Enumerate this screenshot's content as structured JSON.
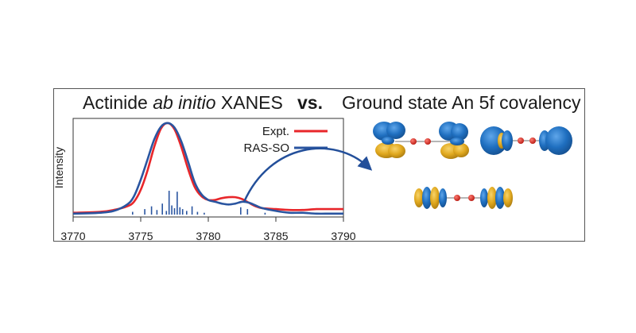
{
  "header": {
    "title_prefix": "Actinide ",
    "title_italic": "ab initio",
    "title_suffix": " XANES",
    "vs": "vs.",
    "title_right": "Ground state An 5f covalency"
  },
  "colors": {
    "expt": "#e8262a",
    "ras_so": "#2a55a0",
    "lobe_blue": "#1f6fc0",
    "lobe_gold": "#e0a81e",
    "atom_red": "#d9261c",
    "arrow": "#234f9a",
    "frame": "#555555"
  },
  "chart_data": {
    "type": "line",
    "xlabel": "",
    "ylabel": "Intensity",
    "xlim": [
      3770,
      3790
    ],
    "ylim": [
      0,
      1.05
    ],
    "x_ticks": [
      "3770",
      "3775",
      "3780",
      "3785",
      "3790"
    ],
    "grid": false,
    "legend_position": "top-right",
    "series": [
      {
        "name": "Expt.",
        "color": "#e8262a",
        "x": [
          3770,
          3772,
          3773,
          3774,
          3774.5,
          3775,
          3775.5,
          3776,
          3776.5,
          3777,
          3777.5,
          3778,
          3778.5,
          3779,
          3779.5,
          3780,
          3780.5,
          3781,
          3781.5,
          3782,
          3782.5,
          3783,
          3783.5,
          3784,
          3785,
          3786,
          3787,
          3788,
          3789,
          3790
        ],
        "y": [
          0.02,
          0.03,
          0.05,
          0.09,
          0.14,
          0.27,
          0.48,
          0.74,
          0.94,
          1.0,
          0.93,
          0.74,
          0.5,
          0.3,
          0.2,
          0.16,
          0.16,
          0.18,
          0.19,
          0.19,
          0.17,
          0.13,
          0.09,
          0.07,
          0.06,
          0.05,
          0.05,
          0.06,
          0.06,
          0.06
        ]
      },
      {
        "name": "RAS-SO",
        "color": "#2a55a0",
        "x": [
          3770,
          3772,
          3773,
          3774,
          3774.5,
          3775,
          3775.5,
          3776,
          3776.5,
          3777,
          3777.5,
          3778,
          3778.5,
          3779,
          3779.5,
          3780,
          3780.5,
          3781,
          3781.5,
          3782,
          3782.5,
          3783,
          3783.5,
          3784,
          3785,
          3786,
          3787,
          3788,
          3789,
          3790
        ],
        "y": [
          0.01,
          0.02,
          0.04,
          0.11,
          0.2,
          0.38,
          0.6,
          0.82,
          0.96,
          1.0,
          0.95,
          0.8,
          0.58,
          0.35,
          0.22,
          0.16,
          0.14,
          0.12,
          0.11,
          0.12,
          0.14,
          0.13,
          0.1,
          0.07,
          0.04,
          0.02,
          0.02,
          0.01,
          0.01,
          0.01
        ]
      }
    ],
    "stick_color": "#2a55a0",
    "sticks": [
      {
        "x": 3774.4,
        "h": 0.03
      },
      {
        "x": 3775.3,
        "h": 0.06
      },
      {
        "x": 3775.8,
        "h": 0.09
      },
      {
        "x": 3776.2,
        "h": 0.05
      },
      {
        "x": 3776.6,
        "h": 0.12
      },
      {
        "x": 3776.9,
        "h": 0.04
      },
      {
        "x": 3777.1,
        "h": 0.26
      },
      {
        "x": 3777.3,
        "h": 0.1
      },
      {
        "x": 3777.5,
        "h": 0.07
      },
      {
        "x": 3777.7,
        "h": 0.25
      },
      {
        "x": 3777.9,
        "h": 0.08
      },
      {
        "x": 3778.1,
        "h": 0.06
      },
      {
        "x": 3778.4,
        "h": 0.04
      },
      {
        "x": 3778.8,
        "h": 0.09
      },
      {
        "x": 3779.2,
        "h": 0.03
      },
      {
        "x": 3779.7,
        "h": 0.02
      },
      {
        "x": 3782.4,
        "h": 0.08
      },
      {
        "x": 3782.9,
        "h": 0.06
      },
      {
        "x": 3784.2,
        "h": 0.02
      }
    ]
  },
  "orbitals": [
    {
      "name": "orbital-pi-pair"
    },
    {
      "name": "orbital-sigma-pair"
    },
    {
      "name": "orbital-delta-pair"
    }
  ]
}
